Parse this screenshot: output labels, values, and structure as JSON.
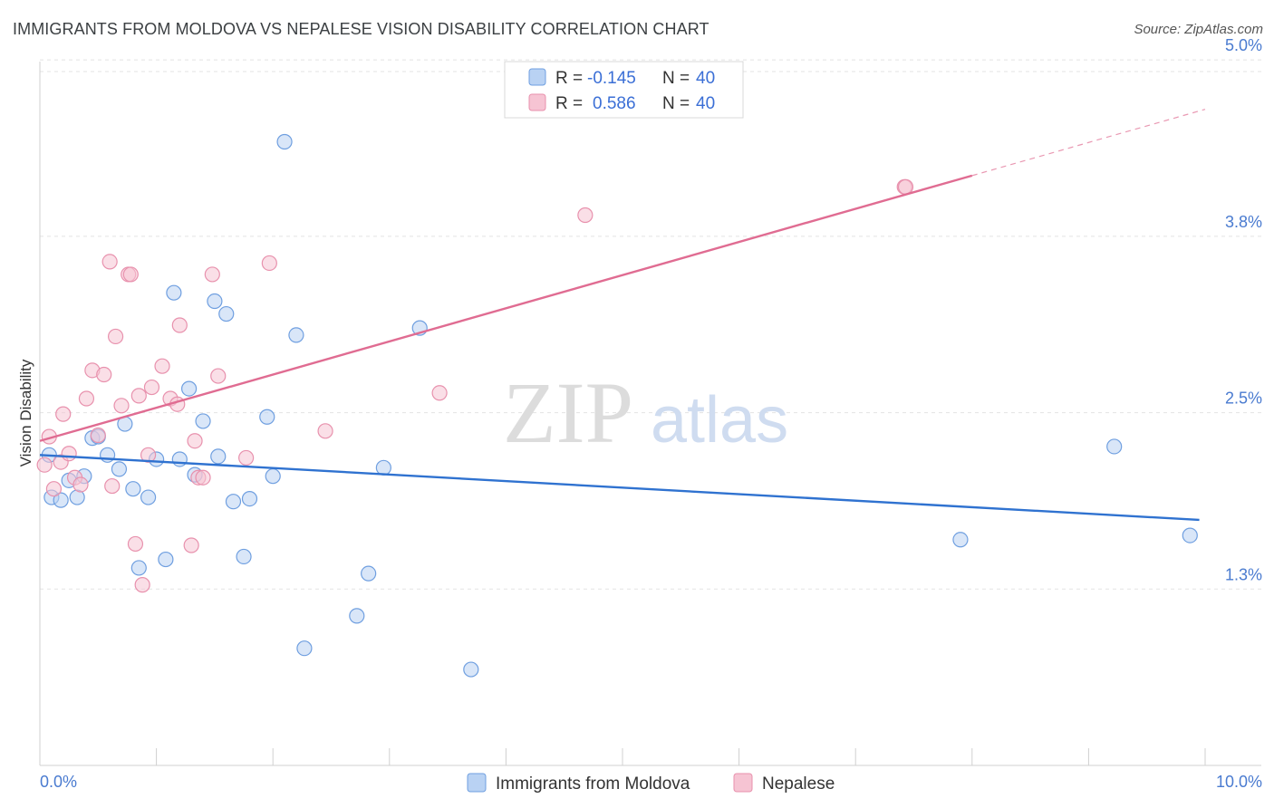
{
  "title": "IMMIGRANTS FROM MOLDOVA VS NEPALESE VISION DISABILITY CORRELATION CHART",
  "source": "Source: ZipAtlas.com",
  "watermark": {
    "zip": "ZIP",
    "atlas": "atlas"
  },
  "colors": {
    "blue": "#6f9fe0",
    "blue_fill": "#b9d2f3",
    "blue_line": "#2f72d0",
    "pink": "#e891ad",
    "pink_fill": "#f6c4d3",
    "pink_line": "#e06c92",
    "axis_text": "#4a7bd0",
    "grid": "#e3e3e3"
  },
  "legend": {
    "rows": [
      {
        "r_label": "R =",
        "r_value": "-0.145",
        "n_label": "N =",
        "n_value": "40",
        "series": "blue"
      },
      {
        "r_label": "R =",
        "r_value": "0.586",
        "n_label": "N =",
        "n_value": "40",
        "series": "pink"
      }
    ]
  },
  "chart_data": {
    "type": "scatter",
    "title": "IMMIGRANTS FROM MOLDOVA VS NEPALESE VISION DISABILITY CORRELATION CHART",
    "xlabel": "",
    "ylabel": "Vision Disability",
    "xlim": [
      0,
      10
    ],
    "ylim": [
      0,
      5.2
    ],
    "x_tick_labels": [
      "0.0%",
      "10.0%"
    ],
    "y_ticks": [
      1.25,
      2.5,
      3.75,
      5.0
    ],
    "y_tick_labels": [
      "1.3%",
      "2.5%",
      "3.8%",
      "5.0%"
    ],
    "grid": true,
    "series": [
      {
        "name": "Immigrants from Moldova",
        "color_key": "blue",
        "trend": {
          "x": [
            0,
            9.95
          ],
          "y": [
            2.2,
            1.74
          ]
        },
        "points": [
          {
            "x": 0.08,
            "y": 2.2
          },
          {
            "x": 0.1,
            "y": 1.9
          },
          {
            "x": 0.18,
            "y": 1.88
          },
          {
            "x": 0.25,
            "y": 2.02
          },
          {
            "x": 0.32,
            "y": 1.9
          },
          {
            "x": 0.38,
            "y": 2.05
          },
          {
            "x": 0.45,
            "y": 2.32
          },
          {
            "x": 0.5,
            "y": 2.33
          },
          {
            "x": 0.58,
            "y": 2.2
          },
          {
            "x": 0.68,
            "y": 2.1
          },
          {
            "x": 0.73,
            "y": 2.42
          },
          {
            "x": 0.8,
            "y": 1.96
          },
          {
            "x": 0.85,
            "y": 1.4
          },
          {
            "x": 0.93,
            "y": 1.9
          },
          {
            "x": 1.0,
            "y": 2.17
          },
          {
            "x": 1.08,
            "y": 1.46
          },
          {
            "x": 1.15,
            "y": 3.35
          },
          {
            "x": 1.2,
            "y": 2.17
          },
          {
            "x": 1.28,
            "y": 2.67
          },
          {
            "x": 1.33,
            "y": 2.06
          },
          {
            "x": 1.4,
            "y": 2.44
          },
          {
            "x": 1.5,
            "y": 3.29
          },
          {
            "x": 1.53,
            "y": 2.19
          },
          {
            "x": 1.6,
            "y": 3.2
          },
          {
            "x": 1.66,
            "y": 1.87
          },
          {
            "x": 1.75,
            "y": 1.48
          },
          {
            "x": 1.8,
            "y": 1.89
          },
          {
            "x": 1.95,
            "y": 2.47
          },
          {
            "x": 2.0,
            "y": 2.05
          },
          {
            "x": 2.1,
            "y": 4.42
          },
          {
            "x": 2.2,
            "y": 3.05
          },
          {
            "x": 2.27,
            "y": 0.83
          },
          {
            "x": 2.72,
            "y": 1.06
          },
          {
            "x": 2.82,
            "y": 1.36
          },
          {
            "x": 2.95,
            "y": 2.11
          },
          {
            "x": 3.26,
            "y": 3.1
          },
          {
            "x": 3.7,
            "y": 0.68
          },
          {
            "x": 7.9,
            "y": 1.6
          },
          {
            "x": 9.22,
            "y": 2.26
          },
          {
            "x": 9.87,
            "y": 1.63
          }
        ]
      },
      {
        "name": "Nepalese",
        "color_key": "pink",
        "trend": {
          "x": [
            0,
            8.0
          ],
          "y": [
            2.3,
            4.18
          ]
        },
        "trend_dashed": {
          "x": [
            8.0,
            10.0
          ],
          "y": [
            4.18,
            4.65
          ]
        },
        "points": [
          {
            "x": 0.04,
            "y": 2.13
          },
          {
            "x": 0.08,
            "y": 2.33
          },
          {
            "x": 0.12,
            "y": 1.96
          },
          {
            "x": 0.18,
            "y": 2.15
          },
          {
            "x": 0.2,
            "y": 2.49
          },
          {
            "x": 0.25,
            "y": 2.21
          },
          {
            "x": 0.3,
            "y": 2.04
          },
          {
            "x": 0.35,
            "y": 1.99
          },
          {
            "x": 0.4,
            "y": 2.6
          },
          {
            "x": 0.45,
            "y": 2.8
          },
          {
            "x": 0.5,
            "y": 2.34
          },
          {
            "x": 0.55,
            "y": 2.77
          },
          {
            "x": 0.6,
            "y": 3.57
          },
          {
            "x": 0.62,
            "y": 1.98
          },
          {
            "x": 0.65,
            "y": 3.04
          },
          {
            "x": 0.7,
            "y": 2.55
          },
          {
            "x": 0.76,
            "y": 3.48
          },
          {
            "x": 0.78,
            "y": 3.48
          },
          {
            "x": 0.82,
            "y": 1.57
          },
          {
            "x": 0.85,
            "y": 2.62
          },
          {
            "x": 0.88,
            "y": 1.28
          },
          {
            "x": 0.93,
            "y": 2.2
          },
          {
            "x": 0.96,
            "y": 2.68
          },
          {
            "x": 1.05,
            "y": 2.83
          },
          {
            "x": 1.12,
            "y": 2.6
          },
          {
            "x": 1.18,
            "y": 2.56
          },
          {
            "x": 1.2,
            "y": 3.12
          },
          {
            "x": 1.3,
            "y": 1.56
          },
          {
            "x": 1.33,
            "y": 2.3
          },
          {
            "x": 1.36,
            "y": 2.04
          },
          {
            "x": 1.4,
            "y": 2.04
          },
          {
            "x": 1.48,
            "y": 3.48
          },
          {
            "x": 1.53,
            "y": 2.76
          },
          {
            "x": 1.77,
            "y": 2.18
          },
          {
            "x": 1.97,
            "y": 3.56
          },
          {
            "x": 2.45,
            "y": 2.37
          },
          {
            "x": 3.43,
            "y": 2.64
          },
          {
            "x": 4.68,
            "y": 3.9
          },
          {
            "x": 7.42,
            "y": 4.1
          },
          {
            "x": 7.43,
            "y": 4.1
          }
        ]
      }
    ],
    "legend_entries": [
      "Immigrants from Moldova",
      "Nepalese"
    ]
  }
}
